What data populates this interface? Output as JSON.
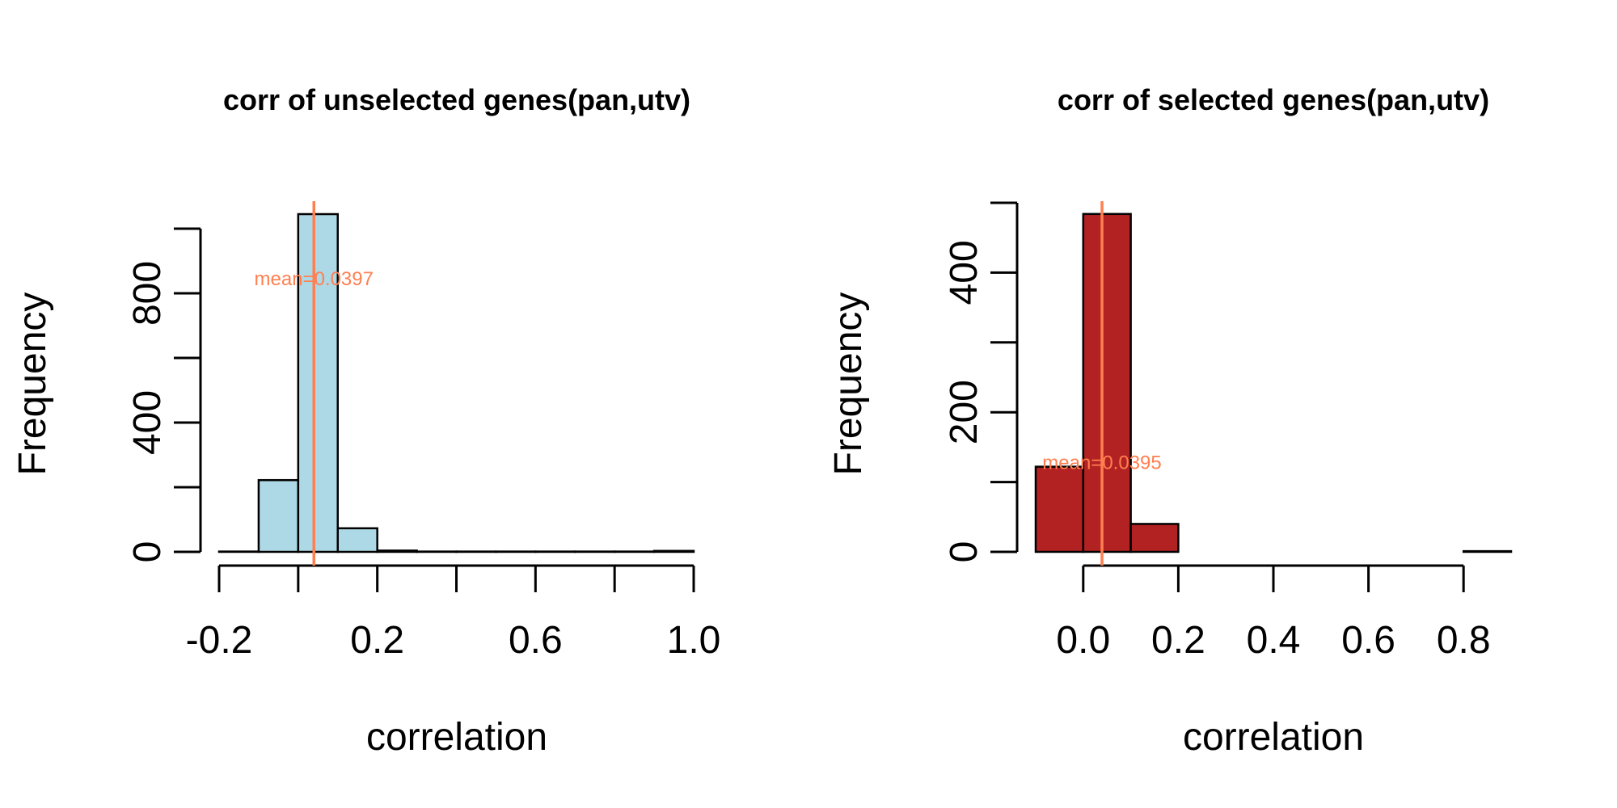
{
  "chart_data": [
    {
      "type": "bar",
      "subtype": "histogram",
      "title": "corr of unselected genes(pan,utv)",
      "xlabel": "correlation",
      "ylabel": "Frequency",
      "bins": [
        -0.2,
        -0.1,
        0.0,
        0.1,
        0.2,
        0.3,
        0.4,
        0.5,
        0.6,
        0.7,
        0.8,
        0.9,
        1.0
      ],
      "counts": [
        1,
        222,
        1045,
        73,
        4,
        1,
        1,
        1,
        1,
        1,
        1,
        3
      ],
      "bar_color": "#ADD8E6",
      "xlim": [
        -0.2,
        1.0
      ],
      "ylim": [
        0,
        1045
      ],
      "xticks": [
        -0.2,
        0.0,
        0.2,
        0.4,
        0.6,
        0.8,
        1.0
      ],
      "xtick_labels": [
        "-0.2",
        "",
        "0.2",
        "",
        "0.6",
        "",
        "1.0"
      ],
      "yticks": [
        0,
        200,
        400,
        600,
        800,
        1000
      ],
      "ytick_labels": [
        "0",
        "",
        "400",
        "",
        "800",
        ""
      ],
      "mean_line": {
        "x": 0.0397,
        "color": "#FF7F50"
      },
      "annotation": {
        "text": "mean=0.0397",
        "x": 0.0397,
        "y": 845,
        "color": "#FF7F50"
      }
    },
    {
      "type": "bar",
      "subtype": "histogram",
      "title": "corr of selected genes(pan,utv)",
      "xlabel": "correlation",
      "ylabel": "Frequency",
      "bins": [
        -0.1,
        0.0,
        0.1,
        0.2,
        0.3,
        0.4,
        0.5,
        0.6,
        0.7,
        0.8,
        0.9
      ],
      "counts": [
        122,
        484,
        40,
        0,
        0,
        0,
        0,
        0,
        0,
        1
      ],
      "bar_color": "#B22222",
      "xlim": [
        -0.1,
        0.9
      ],
      "ylim": [
        0,
        500
      ],
      "xticks": [
        0.0,
        0.2,
        0.4,
        0.6,
        0.8
      ],
      "xtick_labels": [
        "0.0",
        "0.2",
        "0.4",
        "0.6",
        "0.8"
      ],
      "yticks": [
        0,
        100,
        200,
        300,
        400,
        500
      ],
      "ytick_labels": [
        "0",
        "",
        "200",
        "",
        "400",
        ""
      ],
      "mean_line": {
        "x": 0.0395,
        "color": "#FF7F50"
      },
      "annotation": {
        "text": "mean=0.0395",
        "x": 0.0395,
        "y": 128,
        "color": "#FF7F50"
      }
    }
  ]
}
